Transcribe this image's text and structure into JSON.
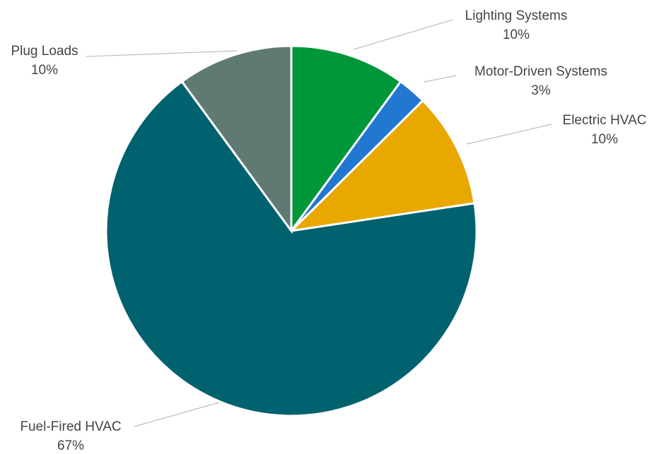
{
  "chart_data": {
    "type": "pie",
    "title": "",
    "series": [
      {
        "values": [
          10,
          2.5,
          10,
          67,
          10
        ],
        "categories": [
          "Lighting Systems",
          "Motor-Driven Systems",
          "Electric HVAC",
          "Fuel-Fired HVAC",
          "Plug Loads"
        ]
      }
    ],
    "slices": [
      {
        "name": "Lighting Systems",
        "value": 10,
        "label": "10%",
        "color": "#00963a"
      },
      {
        "name": "Motor-Driven Systems",
        "value": 2.5,
        "label": "3%",
        "color": "#2277d0"
      },
      {
        "name": "Electric HVAC",
        "value": 10,
        "label": "10%",
        "color": "#e8a800"
      },
      {
        "name": "Fuel-Fired HVAC",
        "value": 67,
        "label": "67%",
        "color": "#00616f"
      },
      {
        "name": "Plug Loads",
        "value": 10,
        "label": "10%",
        "color": "#5f7a72"
      }
    ],
    "legend": "none",
    "label_position": "outside-with-leader-lines"
  }
}
